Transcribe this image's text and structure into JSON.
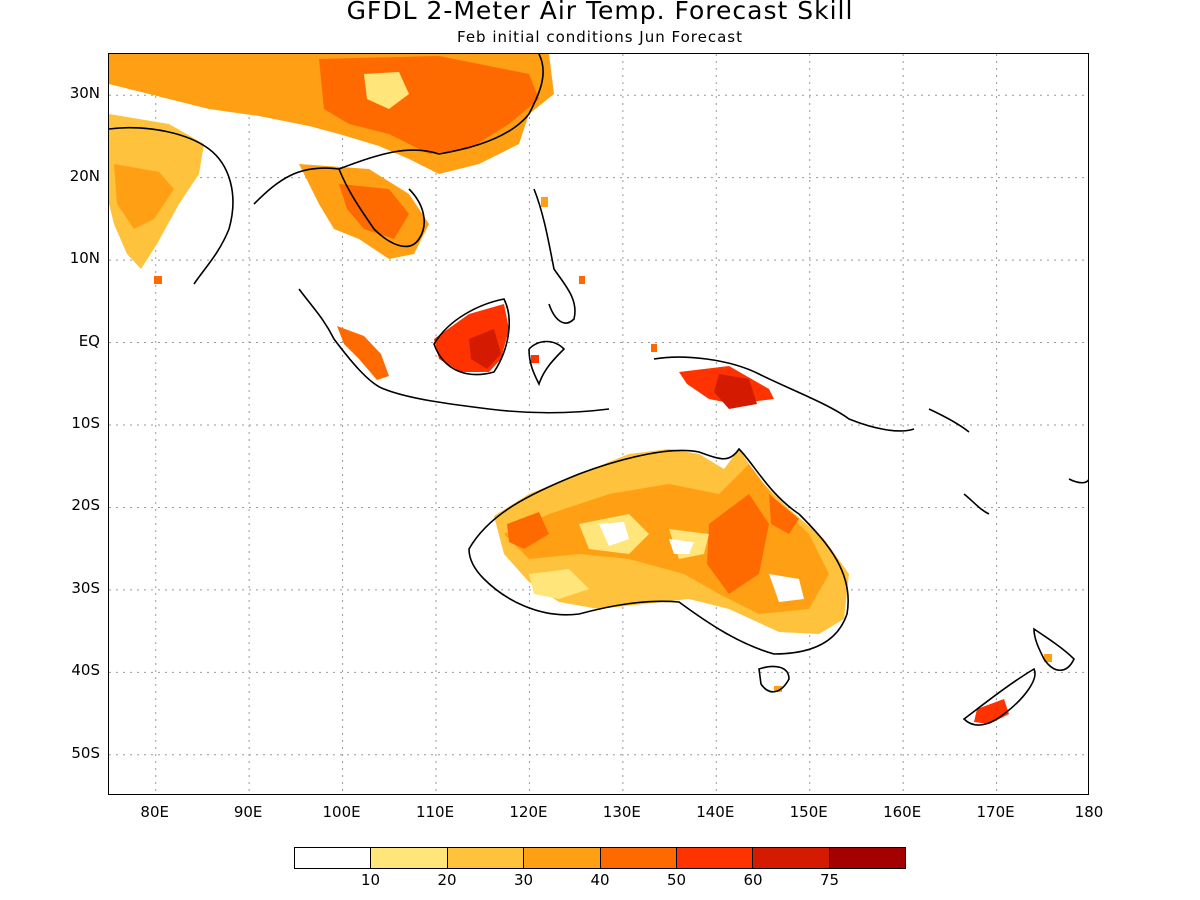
{
  "title": "GFDL 2-Meter Air Temp. Forecast Skill",
  "subtitle": "Feb initial conditions  Jun Forecast",
  "map": {
    "lat_ticks": [
      "30N",
      "20N",
      "10N",
      "EQ",
      "10S",
      "20S",
      "30S",
      "40S",
      "50S"
    ],
    "lon_ticks": [
      "80E",
      "90E",
      "100E",
      "110E",
      "120E",
      "130E",
      "140E",
      "150E",
      "160E",
      "170E",
      "180"
    ],
    "lon_range": [
      75,
      180
    ],
    "lat_range": [
      -55,
      35
    ],
    "grid": "dotted"
  },
  "legend": {
    "colors": [
      "#ffffff",
      "#ffe57a",
      "#ffc23c",
      "#ffa014",
      "#ff6a00",
      "#ff3300",
      "#d41a00",
      "#a50000"
    ],
    "labels": [
      "10",
      "20",
      "30",
      "40",
      "50",
      "60",
      "75"
    ]
  }
}
